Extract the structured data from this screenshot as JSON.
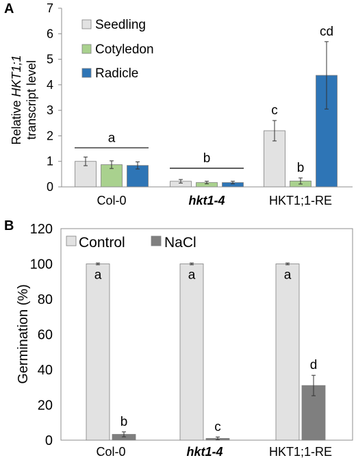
{
  "chart_data": [
    {
      "type": "bar",
      "panel_label": "A",
      "ylabel_lines": [
        "Relative HKT1;1",
        "transcript level"
      ],
      "ylabel_italic_word": "HKT1;1",
      "ylim": [
        0,
        7
      ],
      "yticks": [
        0,
        1,
        2,
        3,
        4,
        5,
        6,
        7
      ],
      "grid": false,
      "legend_position": "top-left",
      "categories": [
        {
          "label": "Col-0",
          "italic": false
        },
        {
          "label": "hkt1-4",
          "italic": true
        },
        {
          "label": "HKT1;1-RE",
          "italic": false
        }
      ],
      "series": [
        {
          "name": "Seedling",
          "color": "#e2e2e2",
          "values": [
            1.0,
            0.22,
            2.2
          ],
          "errors": [
            0.17,
            0.07,
            0.4
          ]
        },
        {
          "name": "Cotyledon",
          "color": "#a9d18e",
          "values": [
            0.87,
            0.17,
            0.23
          ],
          "errors": [
            0.15,
            0.05,
            0.12
          ]
        },
        {
          "name": "Radicle",
          "color": "#2e75b6",
          "values": [
            0.84,
            0.17,
            4.37
          ],
          "errors": [
            0.14,
            0.05,
            1.32
          ]
        }
      ],
      "group_annotations": [
        {
          "label": "a",
          "category": 0,
          "y_text": 1.95,
          "y_line": 1.53
        },
        {
          "label": "b",
          "category": 1,
          "y_text": 1.15,
          "y_line": 0.73
        }
      ],
      "bar_annotations": [
        {
          "label": "c",
          "category": 2,
          "series": 0
        },
        {
          "label": "b",
          "category": 2,
          "series": 1
        },
        {
          "label": "cd",
          "category": 2,
          "series": 2
        }
      ]
    },
    {
      "type": "bar",
      "panel_label": "B",
      "ylabel": "Germination (%)",
      "ylim": [
        0,
        120
      ],
      "yticks": [
        0,
        20,
        40,
        60,
        80,
        100,
        120
      ],
      "grid": false,
      "legend_position": "top-left",
      "categories": [
        {
          "label": "Col-0",
          "italic": false
        },
        {
          "label": "hkt1-4",
          "italic": true
        },
        {
          "label": "HKT1;1-RE",
          "italic": false
        }
      ],
      "series": [
        {
          "name": "Control",
          "color": "#e2e2e2",
          "values": [
            100,
            100,
            100
          ],
          "errors": [
            0.5,
            0.5,
            0.5
          ],
          "letters": [
            "a",
            "a",
            "a"
          ],
          "letter_inside": true
        },
        {
          "name": "NaCl",
          "color": "#7f7f7f",
          "values": [
            3.3,
            1.0,
            31
          ],
          "errors": [
            1.4,
            0.8,
            5.8
          ],
          "letters": [
            "b",
            "c",
            "d"
          ],
          "letter_inside": false
        }
      ]
    }
  ]
}
